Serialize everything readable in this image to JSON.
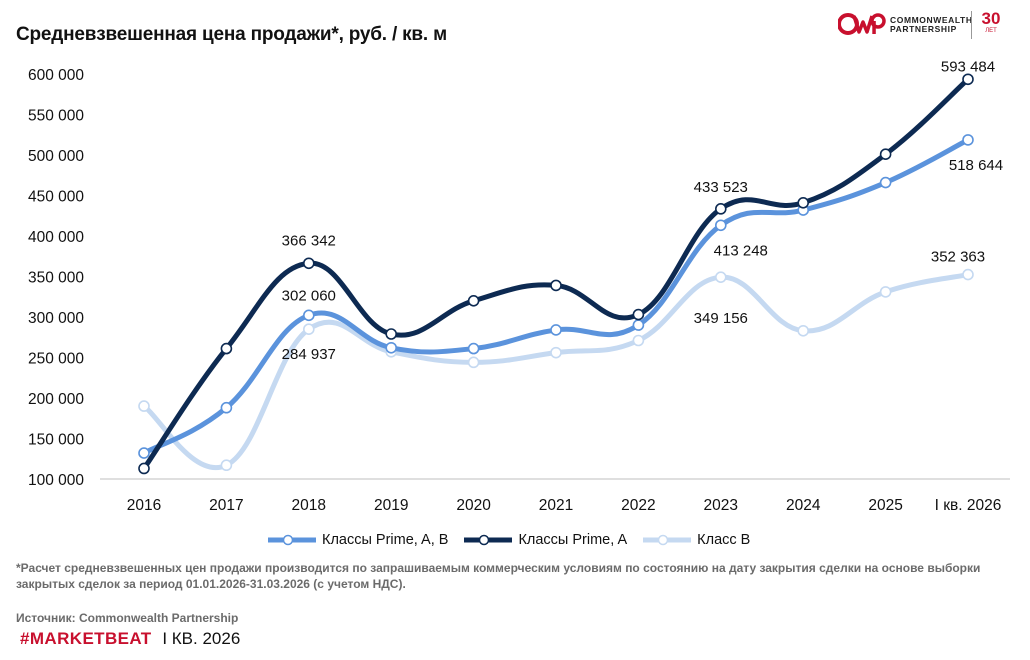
{
  "header": {
    "title": "Средневзвешенная цена продажи*, руб. / кв. м",
    "logo_text_1": "COMMONWEALTH",
    "logo_text_2": "PARTNERSHIP",
    "logo_monogram": "CWP",
    "anniversary_number": "30",
    "anniversary_label": "ЛЕТ"
  },
  "chart_data": {
    "type": "line",
    "title": "Средневзвешенная цена продажи*, руб. / кв. м",
    "categories": [
      "2016",
      "2017",
      "2018",
      "2019",
      "2020",
      "2021",
      "2022",
      "2023",
      "2024",
      "2025",
      "I кв. 2026"
    ],
    "ylim": [
      100000,
      600000
    ],
    "yticks": [
      100000,
      150000,
      200000,
      250000,
      300000,
      350000,
      400000,
      450000,
      500000,
      550000,
      600000
    ],
    "ytick_labels": [
      "100 000",
      "150 000",
      "200 000",
      "250 000",
      "300 000",
      "350 000",
      "400 000",
      "450 000",
      "500 000",
      "550 000",
      "600 000"
    ],
    "grid": false,
    "legend_position": "bottom",
    "series": [
      {
        "name": "Классы Prime, A, B",
        "color": "#5b93dc",
        "values": [
          132000,
          188000,
          302060,
          262000,
          261000,
          284000,
          290000,
          413248,
          432000,
          466000,
          518644
        ]
      },
      {
        "name": "Классы Prime, A",
        "color": "#0d2a52",
        "values": [
          113000,
          261000,
          366342,
          279000,
          320000,
          339000,
          303000,
          433523,
          441000,
          501000,
          593484
        ]
      },
      {
        "name": "Класс B",
        "color": "#c5d9f1",
        "values": [
          190000,
          117000,
          284937,
          257000,
          244000,
          256000,
          271000,
          349156,
          283000,
          331000,
          352363
        ]
      }
    ],
    "data_labels": [
      {
        "series": 1,
        "index": 2,
        "text": "366 342"
      },
      {
        "series": 0,
        "index": 2,
        "text": "302 060"
      },
      {
        "series": 2,
        "index": 2,
        "text": "284 937"
      },
      {
        "series": 1,
        "index": 7,
        "text": "433 523"
      },
      {
        "series": 0,
        "index": 7,
        "text": "413 248"
      },
      {
        "series": 2,
        "index": 7,
        "text": "349 156"
      },
      {
        "series": 1,
        "index": 10,
        "text": "593 484"
      },
      {
        "series": 0,
        "index": 10,
        "text": "518 644"
      },
      {
        "series": 2,
        "index": 10,
        "text": "352 363"
      }
    ]
  },
  "legend": {
    "items": [
      "Классы Prime, A, B",
      "Классы Prime, A",
      "Класс B"
    ]
  },
  "footer": {
    "footnote": "*Расчет средневзвешенных цен продажи производится по запрашиваемым коммерческим условиям по состоянию на дату закрытия сделки на основе выборки закрытых сделок за период 01.01.2026-31.03.2026 (с учетом НДС).",
    "source": "Источник: Commonwealth Partnership",
    "marketbeat": "#MARKETBEAT",
    "quarter": "I КВ. 2026"
  }
}
